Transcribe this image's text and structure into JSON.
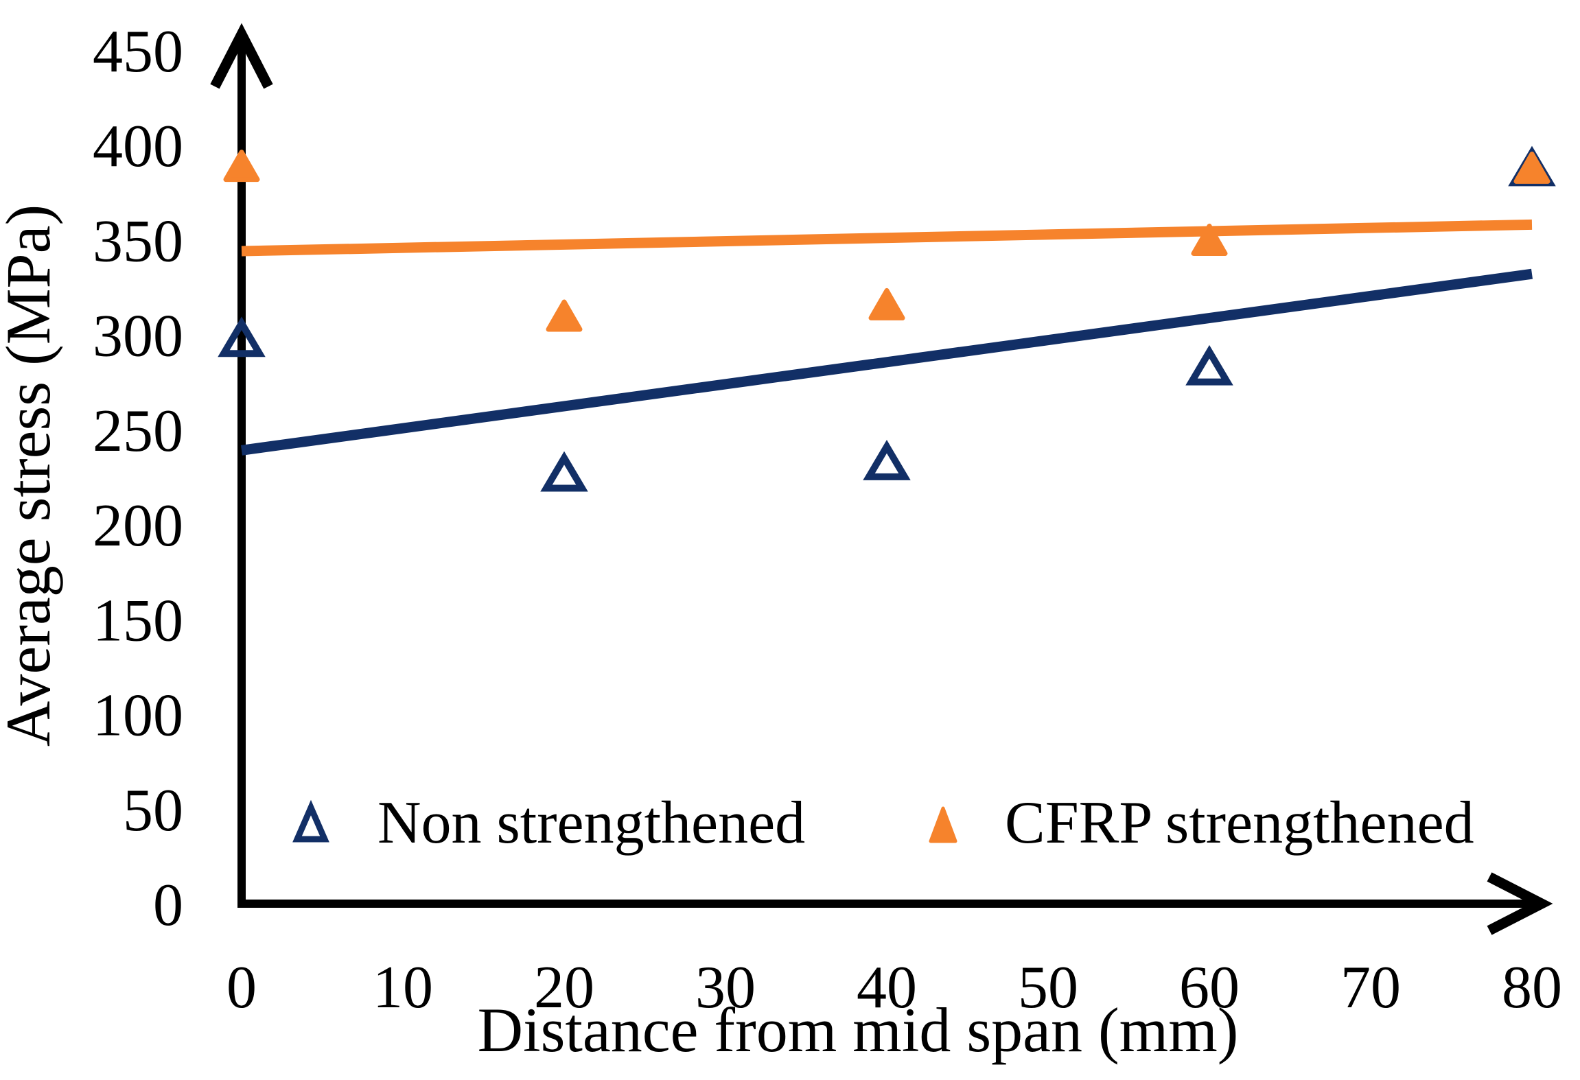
{
  "figure": {
    "background": "#ffffff",
    "axis_color": "#000000"
  },
  "chart_data": {
    "type": "scatter",
    "title": "",
    "xlabel": "Distance from mid span (mm)",
    "ylabel": "Average stress (MPa)",
    "xlim": [
      0,
      80
    ],
    "ylim": [
      0,
      450
    ],
    "x_ticks": [
      0,
      10,
      20,
      30,
      40,
      50,
      60,
      70,
      80
    ],
    "y_ticks": [
      0,
      50,
      100,
      150,
      200,
      250,
      300,
      350,
      400,
      450
    ],
    "grid": false,
    "legend_position": "inside-bottom",
    "series": [
      {
        "name": "Non strengthened",
        "marker": "open-triangle",
        "color": "#122f66",
        "x": [
          0,
          20,
          40,
          60,
          80
        ],
        "y": [
          298,
          227,
          233,
          283,
          388
        ],
        "trendline": {
          "x": [
            0,
            80
          ],
          "y": [
            239,
            332
          ]
        }
      },
      {
        "name": "CFRP strengthened",
        "marker": "filled-triangle",
        "color": "#f6832c",
        "x": [
          0,
          20,
          40,
          60,
          80
        ],
        "y": [
          389,
          310,
          316,
          350,
          388
        ],
        "trendline": {
          "x": [
            0,
            80
          ],
          "y": [
            344,
            358
          ]
        }
      }
    ]
  }
}
